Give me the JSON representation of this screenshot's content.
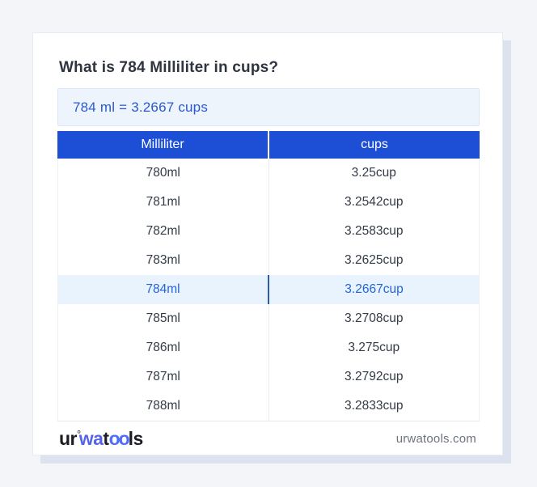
{
  "title": "What is 784 Milliliter in cups?",
  "result": {
    "text": "784 ml = 3.2667 cups"
  },
  "table": {
    "headers": [
      "Milliliter",
      "cups"
    ],
    "rows": [
      {
        "ml": "780ml",
        "cup": "3.25cup",
        "highlighted": false
      },
      {
        "ml": "781ml",
        "cup": "3.2542cup",
        "highlighted": false
      },
      {
        "ml": "782ml",
        "cup": "3.2583cup",
        "highlighted": false
      },
      {
        "ml": "783ml",
        "cup": "3.2625cup",
        "highlighted": false
      },
      {
        "ml": "784ml",
        "cup": "3.2667cup",
        "highlighted": true
      },
      {
        "ml": "785ml",
        "cup": "3.2708cup",
        "highlighted": false
      },
      {
        "ml": "786ml",
        "cup": "3.275cup",
        "highlighted": false
      },
      {
        "ml": "787ml",
        "cup": "3.2792cup",
        "highlighted": false
      },
      {
        "ml": "788ml",
        "cup": "3.2833cup",
        "highlighted": false
      }
    ]
  },
  "footer": {
    "logo": {
      "part1": "ur",
      "ring": "°",
      "part2": "wa",
      "part3": "t",
      "part4": "oo",
      "part5": "ls"
    },
    "domain": "urwatools.com"
  },
  "colors": {
    "page_background": "#f4f5f9",
    "card_background": "#ffffff",
    "card_shadow": "#dde2ef",
    "header_blue": "#1d4fd6",
    "result_box_background": "#edf4fc",
    "result_text_blue": "#2a58d0",
    "highlight_row_background": "#e9f3fd",
    "highlight_text_blue": "#2465d6",
    "body_text": "#333b46",
    "logo_blue": "#5663e8"
  }
}
